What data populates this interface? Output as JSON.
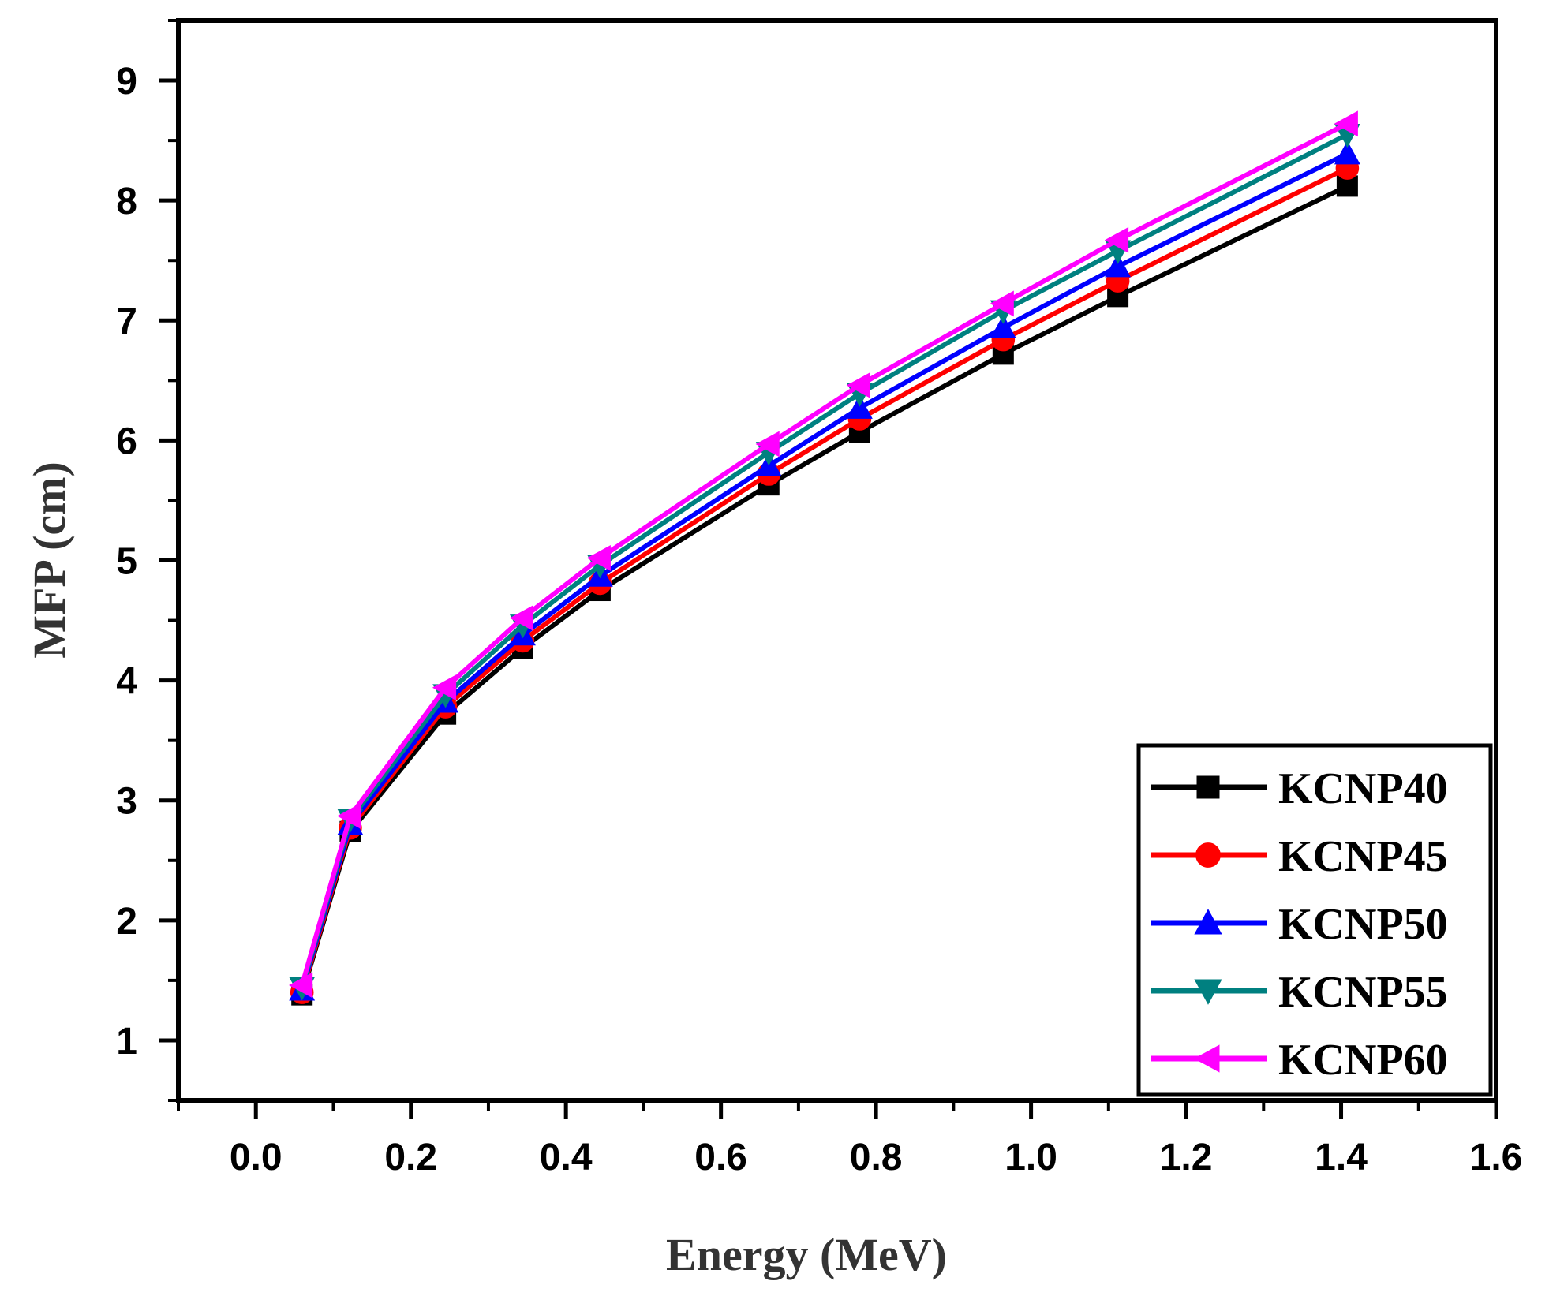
{
  "chart_data": {
    "type": "line",
    "xlabel": "Energy (MeV)",
    "ylabel": "MFP (cm)",
    "xlim": [
      -0.1,
      1.6
    ],
    "ylim": [
      0.5,
      9.5
    ],
    "xticks": [
      "0.0",
      "0.2",
      "0.4",
      "0.6",
      "0.8",
      "1.0",
      "1.2",
      "1.4",
      "1.6"
    ],
    "yticks": [
      "1",
      "2",
      "3",
      "4",
      "5",
      "6",
      "7",
      "8",
      "9"
    ],
    "legend_position": "bottom-right",
    "x": [
      0.0595,
      0.1218,
      0.2447,
      0.3443,
      0.444,
      0.6617,
      0.7789,
      0.9641,
      1.112,
      1.408
    ],
    "series": [
      {
        "name": "KCNP40",
        "color": "#000000",
        "marker": "square",
        "values": [
          1.38,
          2.74,
          3.72,
          4.27,
          4.75,
          5.63,
          6.07,
          6.72,
          7.2,
          8.12
        ]
      },
      {
        "name": "KCNP45",
        "color": "#ff0000",
        "marker": "circle",
        "values": [
          1.4,
          2.77,
          3.78,
          4.33,
          4.81,
          5.72,
          6.18,
          6.84,
          7.33,
          8.27
        ]
      },
      {
        "name": "KCNP50",
        "color": "#0000ff",
        "marker": "triangle-up",
        "values": [
          1.42,
          2.8,
          3.82,
          4.38,
          4.87,
          5.79,
          6.27,
          6.94,
          7.45,
          8.39
        ]
      },
      {
        "name": "KCNP55",
        "color": "#008080",
        "marker": "triangle-down",
        "values": [
          1.44,
          2.84,
          3.88,
          4.46,
          4.96,
          5.9,
          6.39,
          7.08,
          7.58,
          8.55
        ]
      },
      {
        "name": "KCNP60",
        "color": "#ff00ff",
        "marker": "triangle-left",
        "values": [
          1.46,
          2.87,
          3.94,
          4.52,
          5.02,
          5.97,
          6.46,
          7.14,
          7.67,
          8.64
        ]
      }
    ]
  }
}
